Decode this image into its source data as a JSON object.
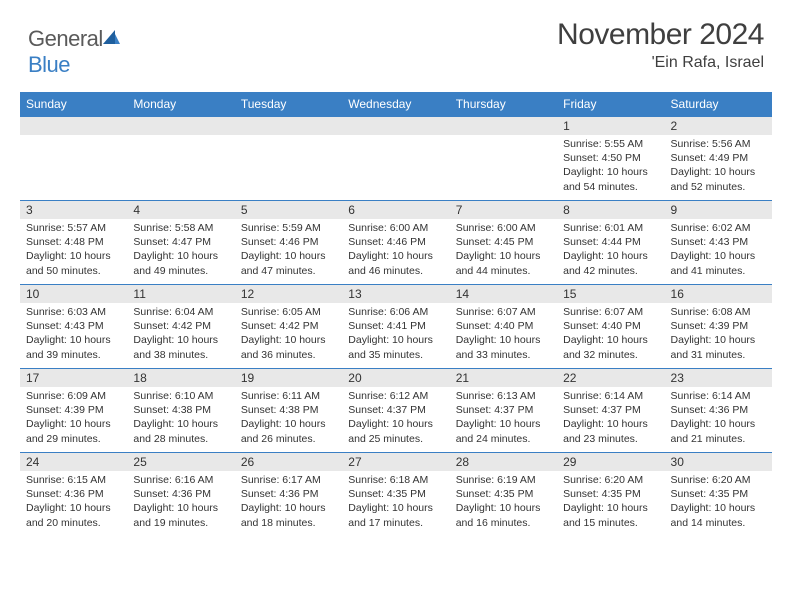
{
  "brand": {
    "name1": "General",
    "name2": "Blue"
  },
  "title": "November 2024",
  "location": "'Ein Rafa, Israel",
  "colors": {
    "header_bg": "#3a7fc4",
    "daynum_bg": "#e8e8e8",
    "text": "#333333",
    "title_text": "#3f3f3f"
  },
  "dayNames": [
    "Sunday",
    "Monday",
    "Tuesday",
    "Wednesday",
    "Thursday",
    "Friday",
    "Saturday"
  ],
  "weeks": [
    [
      {
        "n": "",
        "sr": "",
        "ss": "",
        "dl": ""
      },
      {
        "n": "",
        "sr": "",
        "ss": "",
        "dl": ""
      },
      {
        "n": "",
        "sr": "",
        "ss": "",
        "dl": ""
      },
      {
        "n": "",
        "sr": "",
        "ss": "",
        "dl": ""
      },
      {
        "n": "",
        "sr": "",
        "ss": "",
        "dl": ""
      },
      {
        "n": "1",
        "sr": "Sunrise: 5:55 AM",
        "ss": "Sunset: 4:50 PM",
        "dl": "Daylight: 10 hours and 54 minutes."
      },
      {
        "n": "2",
        "sr": "Sunrise: 5:56 AM",
        "ss": "Sunset: 4:49 PM",
        "dl": "Daylight: 10 hours and 52 minutes."
      }
    ],
    [
      {
        "n": "3",
        "sr": "Sunrise: 5:57 AM",
        "ss": "Sunset: 4:48 PM",
        "dl": "Daylight: 10 hours and 50 minutes."
      },
      {
        "n": "4",
        "sr": "Sunrise: 5:58 AM",
        "ss": "Sunset: 4:47 PM",
        "dl": "Daylight: 10 hours and 49 minutes."
      },
      {
        "n": "5",
        "sr": "Sunrise: 5:59 AM",
        "ss": "Sunset: 4:46 PM",
        "dl": "Daylight: 10 hours and 47 minutes."
      },
      {
        "n": "6",
        "sr": "Sunrise: 6:00 AM",
        "ss": "Sunset: 4:46 PM",
        "dl": "Daylight: 10 hours and 46 minutes."
      },
      {
        "n": "7",
        "sr": "Sunrise: 6:00 AM",
        "ss": "Sunset: 4:45 PM",
        "dl": "Daylight: 10 hours and 44 minutes."
      },
      {
        "n": "8",
        "sr": "Sunrise: 6:01 AM",
        "ss": "Sunset: 4:44 PM",
        "dl": "Daylight: 10 hours and 42 minutes."
      },
      {
        "n": "9",
        "sr": "Sunrise: 6:02 AM",
        "ss": "Sunset: 4:43 PM",
        "dl": "Daylight: 10 hours and 41 minutes."
      }
    ],
    [
      {
        "n": "10",
        "sr": "Sunrise: 6:03 AM",
        "ss": "Sunset: 4:43 PM",
        "dl": "Daylight: 10 hours and 39 minutes."
      },
      {
        "n": "11",
        "sr": "Sunrise: 6:04 AM",
        "ss": "Sunset: 4:42 PM",
        "dl": "Daylight: 10 hours and 38 minutes."
      },
      {
        "n": "12",
        "sr": "Sunrise: 6:05 AM",
        "ss": "Sunset: 4:42 PM",
        "dl": "Daylight: 10 hours and 36 minutes."
      },
      {
        "n": "13",
        "sr": "Sunrise: 6:06 AM",
        "ss": "Sunset: 4:41 PM",
        "dl": "Daylight: 10 hours and 35 minutes."
      },
      {
        "n": "14",
        "sr": "Sunrise: 6:07 AM",
        "ss": "Sunset: 4:40 PM",
        "dl": "Daylight: 10 hours and 33 minutes."
      },
      {
        "n": "15",
        "sr": "Sunrise: 6:07 AM",
        "ss": "Sunset: 4:40 PM",
        "dl": "Daylight: 10 hours and 32 minutes."
      },
      {
        "n": "16",
        "sr": "Sunrise: 6:08 AM",
        "ss": "Sunset: 4:39 PM",
        "dl": "Daylight: 10 hours and 31 minutes."
      }
    ],
    [
      {
        "n": "17",
        "sr": "Sunrise: 6:09 AM",
        "ss": "Sunset: 4:39 PM",
        "dl": "Daylight: 10 hours and 29 minutes."
      },
      {
        "n": "18",
        "sr": "Sunrise: 6:10 AM",
        "ss": "Sunset: 4:38 PM",
        "dl": "Daylight: 10 hours and 28 minutes."
      },
      {
        "n": "19",
        "sr": "Sunrise: 6:11 AM",
        "ss": "Sunset: 4:38 PM",
        "dl": "Daylight: 10 hours and 26 minutes."
      },
      {
        "n": "20",
        "sr": "Sunrise: 6:12 AM",
        "ss": "Sunset: 4:37 PM",
        "dl": "Daylight: 10 hours and 25 minutes."
      },
      {
        "n": "21",
        "sr": "Sunrise: 6:13 AM",
        "ss": "Sunset: 4:37 PM",
        "dl": "Daylight: 10 hours and 24 minutes."
      },
      {
        "n": "22",
        "sr": "Sunrise: 6:14 AM",
        "ss": "Sunset: 4:37 PM",
        "dl": "Daylight: 10 hours and 23 minutes."
      },
      {
        "n": "23",
        "sr": "Sunrise: 6:14 AM",
        "ss": "Sunset: 4:36 PM",
        "dl": "Daylight: 10 hours and 21 minutes."
      }
    ],
    [
      {
        "n": "24",
        "sr": "Sunrise: 6:15 AM",
        "ss": "Sunset: 4:36 PM",
        "dl": "Daylight: 10 hours and 20 minutes."
      },
      {
        "n": "25",
        "sr": "Sunrise: 6:16 AM",
        "ss": "Sunset: 4:36 PM",
        "dl": "Daylight: 10 hours and 19 minutes."
      },
      {
        "n": "26",
        "sr": "Sunrise: 6:17 AM",
        "ss": "Sunset: 4:36 PM",
        "dl": "Daylight: 10 hours and 18 minutes."
      },
      {
        "n": "27",
        "sr": "Sunrise: 6:18 AM",
        "ss": "Sunset: 4:35 PM",
        "dl": "Daylight: 10 hours and 17 minutes."
      },
      {
        "n": "28",
        "sr": "Sunrise: 6:19 AM",
        "ss": "Sunset: 4:35 PM",
        "dl": "Daylight: 10 hours and 16 minutes."
      },
      {
        "n": "29",
        "sr": "Sunrise: 6:20 AM",
        "ss": "Sunset: 4:35 PM",
        "dl": "Daylight: 10 hours and 15 minutes."
      },
      {
        "n": "30",
        "sr": "Sunrise: 6:20 AM",
        "ss": "Sunset: 4:35 PM",
        "dl": "Daylight: 10 hours and 14 minutes."
      }
    ]
  ]
}
